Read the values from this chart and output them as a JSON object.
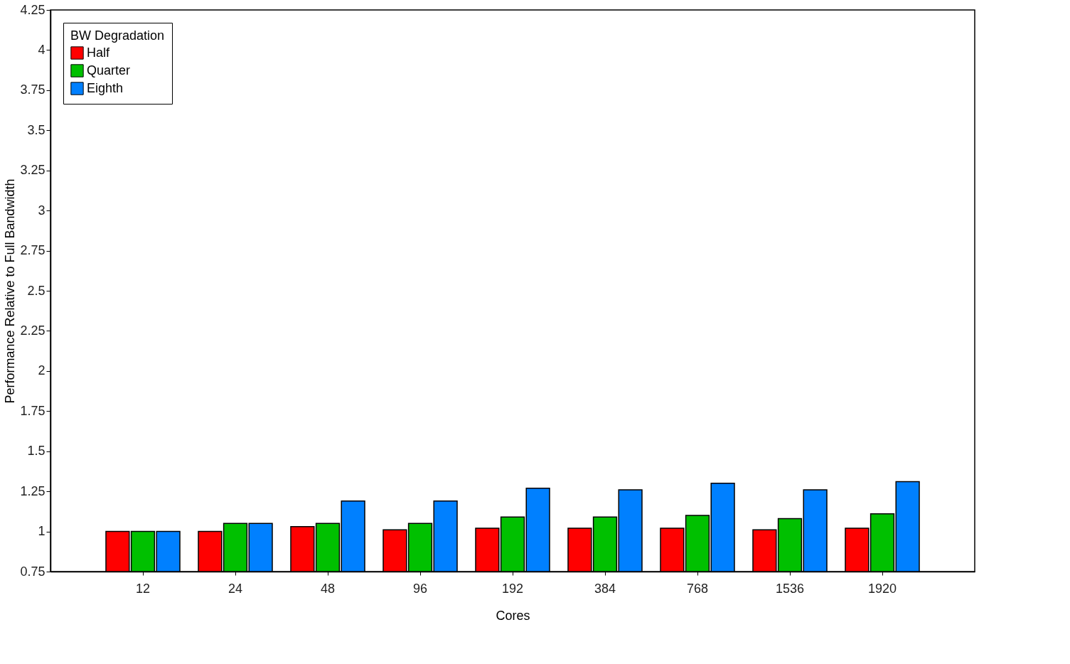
{
  "chart_data": {
    "type": "bar",
    "xlabel": "Cores",
    "ylabel": "Performance Relative to Full Bandwidth",
    "legend_title": "BW Degradation",
    "categories": [
      "12",
      "24",
      "48",
      "96",
      "192",
      "384",
      "768",
      "1536",
      "1920"
    ],
    "series": [
      {
        "name": "Half",
        "color": "#ff0000",
        "values": [
          1.0,
          1.0,
          1.03,
          1.01,
          1.02,
          1.02,
          1.02,
          1.01,
          1.02
        ]
      },
      {
        "name": "Quarter",
        "color": "#00c000",
        "values": [
          1.0,
          1.05,
          1.05,
          1.05,
          1.09,
          1.09,
          1.1,
          1.08,
          1.11
        ]
      },
      {
        "name": "Eighth",
        "color": "#0080ff",
        "values": [
          1.0,
          1.05,
          1.19,
          1.19,
          1.27,
          1.26,
          1.3,
          1.26,
          1.31
        ]
      }
    ],
    "ylim": [
      0.75,
      4.25
    ],
    "yticks": [
      0.75,
      1,
      1.25,
      1.5,
      1.75,
      2,
      2.25,
      2.5,
      2.75,
      3,
      3.25,
      3.5,
      3.75,
      4,
      4.25
    ],
    "grid": false,
    "legend": "top left"
  }
}
